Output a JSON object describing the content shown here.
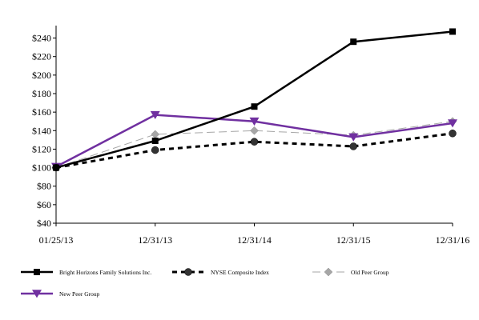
{
  "chart_data": {
    "type": "line",
    "categories": [
      "01/25/13",
      "12/31/13",
      "12/31/14",
      "12/31/15",
      "12/31/16"
    ],
    "y_tick_labels": [
      "$40",
      "$60",
      "$80",
      "$100",
      "$120",
      "$140",
      "$160",
      "$180",
      "$200",
      "$220",
      "$240"
    ],
    "ylim": [
      40,
      250
    ],
    "grid": false,
    "legend_position": "bottom",
    "series": [
      {
        "name": "Bright Horizons Family Solutions Inc.",
        "values": [
          100,
          129,
          166,
          236,
          247
        ],
        "color": "#000000",
        "marker": "square",
        "line_style": "solid"
      },
      {
        "name": "NYSE Composite Index",
        "values": [
          100,
          119,
          128,
          123,
          137
        ],
        "color": "#000000",
        "marker": "circle",
        "line_style": "dashed"
      },
      {
        "name": "Old Peer Group",
        "values": [
          100,
          136,
          140,
          135,
          150
        ],
        "color": "#a6a6a6",
        "marker": "diamond",
        "line_style": "longdash"
      },
      {
        "name": "New Peer Group",
        "values": [
          101,
          157,
          150,
          133,
          148
        ],
        "color": "#7030a0",
        "marker": "triangle-down",
        "line_style": "solid"
      }
    ]
  }
}
